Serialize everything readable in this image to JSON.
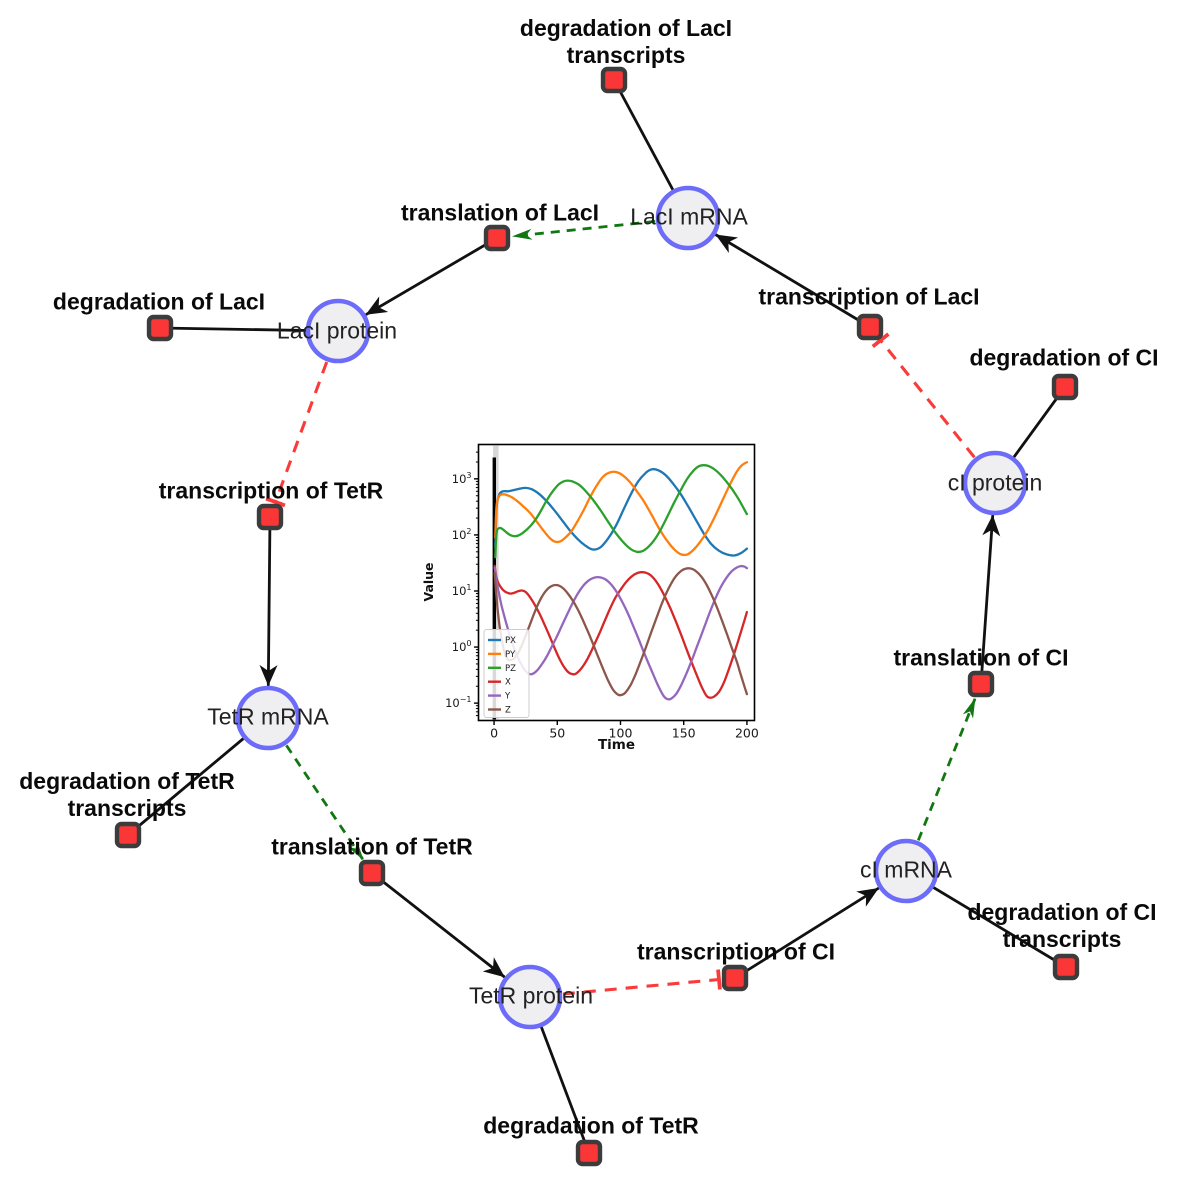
{
  "diagram": {
    "species": [
      {
        "label": "LacI mRNA"
      },
      {
        "label": "LacI protein"
      },
      {
        "label": "TetR mRNA"
      },
      {
        "label": "TetR protein"
      },
      {
        "label": "cI mRNA"
      },
      {
        "label": "cI protein"
      }
    ],
    "reactions": [
      {
        "label": "degradation of LacI transcripts"
      },
      {
        "label": "translation of LacI"
      },
      {
        "label": "transcription of LacI"
      },
      {
        "label": "degradation of LacI"
      },
      {
        "label": "degradation of CI"
      },
      {
        "label": "transcription of TetR"
      },
      {
        "label": "degradation of TetR transcripts"
      },
      {
        "label": "translation of TetR"
      },
      {
        "label": "degradation of TetR"
      },
      {
        "label": "transcription of CI"
      },
      {
        "label": "degradation of CI transcripts"
      },
      {
        "label": "translation of CI"
      }
    ],
    "colors": {
      "species_fill": "#efeff1",
      "species_border": "#6c6cf9",
      "reaction_fill": "#fa3636",
      "reaction_border": "#3c3c3c",
      "edge": "#111111",
      "modifier_green": "#117711",
      "inhibition_red": "#fa3b3b"
    }
  },
  "chart_data": {
    "type": "line",
    "title": "",
    "xlabel": "Time",
    "ylabel": "Value",
    "yscale": "log",
    "xlim": [
      -12.3,
      206
    ],
    "ylim": [
      0.049,
      4100
    ],
    "xticks": [
      0,
      50,
      100,
      150,
      200
    ],
    "ytick_exponents": [
      3,
      2,
      1,
      0,
      -1
    ],
    "legend_position": "lower left",
    "annotations": {
      "vline_x": 0.2,
      "vline_color": "#000000",
      "band_color": "#9a9494"
    },
    "series": [
      {
        "name": "PX",
        "color": "#1f77b4",
        "points": [
          [
            1,
            60
          ],
          [
            2,
            300
          ],
          [
            4,
            520
          ],
          [
            7,
            600
          ],
          [
            11,
            600
          ],
          [
            15,
            625
          ],
          [
            20,
            665
          ],
          [
            25,
            690
          ],
          [
            30,
            650
          ],
          [
            36,
            530
          ],
          [
            42,
            390
          ],
          [
            48,
            270
          ],
          [
            54,
            180
          ],
          [
            60,
            120
          ],
          [
            66,
            85
          ],
          [
            72,
            65
          ],
          [
            78,
            55
          ],
          [
            84,
            60
          ],
          [
            90,
            85
          ],
          [
            96,
            140
          ],
          [
            102,
            270
          ],
          [
            108,
            520
          ],
          [
            114,
            900
          ],
          [
            120,
            1280
          ],
          [
            125,
            1480
          ],
          [
            130,
            1420
          ],
          [
            136,
            1150
          ],
          [
            142,
            800
          ],
          [
            148,
            520
          ],
          [
            154,
            310
          ],
          [
            160,
            180
          ],
          [
            166,
            105
          ],
          [
            172,
            68
          ],
          [
            178,
            52
          ],
          [
            184,
            45
          ],
          [
            190,
            43
          ],
          [
            195,
            47
          ],
          [
            200,
            57
          ]
        ]
      },
      {
        "name": "PY",
        "color": "#ff7f0e",
        "points": [
          [
            1,
            90
          ],
          [
            2,
            330
          ],
          [
            4,
            490
          ],
          [
            7,
            530
          ],
          [
            10,
            515
          ],
          [
            14,
            470
          ],
          [
            19,
            390
          ],
          [
            24,
            310
          ],
          [
            29,
            240
          ],
          [
            34,
            170
          ],
          [
            39,
            120
          ],
          [
            44,
            88
          ],
          [
            48,
            76
          ],
          [
            52,
            76
          ],
          [
            56,
            88
          ],
          [
            61,
            115
          ],
          [
            66,
            175
          ],
          [
            71,
            280
          ],
          [
            76,
            470
          ],
          [
            81,
            750
          ],
          [
            86,
            1080
          ],
          [
            91,
            1290
          ],
          [
            96,
            1330
          ],
          [
            101,
            1190
          ],
          [
            107,
            900
          ],
          [
            113,
            600
          ],
          [
            119,
            380
          ],
          [
            125,
            220
          ],
          [
            131,
            125
          ],
          [
            137,
            78
          ],
          [
            143,
            54
          ],
          [
            148,
            45
          ],
          [
            153,
            45
          ],
          [
            158,
            55
          ],
          [
            163,
            75
          ],
          [
            169,
            120
          ],
          [
            175,
            220
          ],
          [
            181,
            430
          ],
          [
            187,
            830
          ],
          [
            192,
            1350
          ],
          [
            196,
            1750
          ],
          [
            200,
            1980
          ]
        ]
      },
      {
        "name": "PZ",
        "color": "#2ca02c",
        "points": [
          [
            1,
            40
          ],
          [
            2,
            110
          ],
          [
            4,
            132
          ],
          [
            6,
            130
          ],
          [
            9,
            115
          ],
          [
            13,
            99
          ],
          [
            17,
            95
          ],
          [
            21,
            102
          ],
          [
            26,
            125
          ],
          [
            31,
            165
          ],
          [
            36,
            245
          ],
          [
            41,
            390
          ],
          [
            46,
            580
          ],
          [
            51,
            790
          ],
          [
            55,
            900
          ],
          [
            58,
            930
          ],
          [
            62,
            900
          ],
          [
            67,
            790
          ],
          [
            72,
            620
          ],
          [
            78,
            430
          ],
          [
            84,
            280
          ],
          [
            90,
            175
          ],
          [
            96,
            110
          ],
          [
            102,
            75
          ],
          [
            108,
            56
          ],
          [
            113,
            50
          ],
          [
            118,
            52
          ],
          [
            124,
            68
          ],
          [
            130,
            105
          ],
          [
            136,
            190
          ],
          [
            142,
            360
          ],
          [
            148,
            650
          ],
          [
            153,
            1020
          ],
          [
            158,
            1420
          ],
          [
            162,
            1680
          ],
          [
            166,
            1750
          ],
          [
            170,
            1680
          ],
          [
            175,
            1440
          ],
          [
            181,
            1060
          ],
          [
            187,
            720
          ],
          [
            193,
            450
          ],
          [
            200,
            235
          ]
        ]
      },
      {
        "name": "X",
        "color": "#d62728",
        "points": [
          [
            0.5,
            28
          ],
          [
            2,
            17
          ],
          [
            4,
            13
          ],
          [
            7,
            10.5
          ],
          [
            10,
            9.4
          ],
          [
            13,
            9.0
          ],
          [
            16,
            9.3
          ],
          [
            19,
            9.9
          ],
          [
            22,
            10.2
          ],
          [
            25,
            9.6
          ],
          [
            28,
            8.0
          ],
          [
            32,
            5.8
          ],
          [
            36,
            3.9
          ],
          [
            40,
            2.5
          ],
          [
            44,
            1.55
          ],
          [
            48,
            0.95
          ],
          [
            52,
            0.6
          ],
          [
            56,
            0.42
          ],
          [
            60,
            0.34
          ],
          [
            64,
            0.33
          ],
          [
            68,
            0.39
          ],
          [
            72,
            0.52
          ],
          [
            76,
            0.76
          ],
          [
            80,
            1.2
          ],
          [
            84,
            1.9
          ],
          [
            88,
            3.1
          ],
          [
            92,
            5.0
          ],
          [
            96,
            7.6
          ],
          [
            100,
            10.5
          ],
          [
            104,
            14
          ],
          [
            108,
            17.5
          ],
          [
            112,
            20.3
          ],
          [
            116,
            21.6
          ],
          [
            120,
            21.2
          ],
          [
            124,
            19
          ],
          [
            128,
            15
          ],
          [
            132,
            10.8
          ],
          [
            136,
            7.2
          ],
          [
            140,
            4.6
          ],
          [
            144,
            2.8
          ],
          [
            148,
            1.65
          ],
          [
            152,
            0.95
          ],
          [
            156,
            0.55
          ],
          [
            160,
            0.33
          ],
          [
            164,
            0.2
          ],
          [
            168,
            0.135
          ],
          [
            171,
            0.125
          ],
          [
            174,
            0.13
          ],
          [
            178,
            0.16
          ],
          [
            182,
            0.24
          ],
          [
            186,
            0.42
          ],
          [
            190,
            0.78
          ],
          [
            194,
            1.5
          ],
          [
            197,
            2.5
          ],
          [
            200,
            4.2
          ]
        ]
      },
      {
        "name": "Y",
        "color": "#9467bd",
        "points": [
          [
            0.5,
            26
          ],
          [
            2,
            15
          ],
          [
            4,
            8.8
          ],
          [
            6,
            5.4
          ],
          [
            9,
            3.0
          ],
          [
            12,
            1.75
          ],
          [
            15,
            1.08
          ],
          [
            18,
            0.72
          ],
          [
            21,
            0.52
          ],
          [
            24,
            0.4
          ],
          [
            27,
            0.34
          ],
          [
            30,
            0.33
          ],
          [
            34,
            0.38
          ],
          [
            38,
            0.5
          ],
          [
            42,
            0.7
          ],
          [
            46,
            1.05
          ],
          [
            50,
            1.6
          ],
          [
            54,
            2.5
          ],
          [
            58,
            3.9
          ],
          [
            62,
            6.0
          ],
          [
            66,
            8.8
          ],
          [
            70,
            12
          ],
          [
            74,
            14.9
          ],
          [
            78,
            16.9
          ],
          [
            82,
            17.7
          ],
          [
            86,
            17
          ],
          [
            90,
            15
          ],
          [
            94,
            12
          ],
          [
            98,
            8.8
          ],
          [
            102,
            6.0
          ],
          [
            106,
            3.9
          ],
          [
            110,
            2.4
          ],
          [
            114,
            1.45
          ],
          [
            118,
            0.86
          ],
          [
            122,
            0.52
          ],
          [
            126,
            0.32
          ],
          [
            130,
            0.2
          ],
          [
            134,
            0.135
          ],
          [
            137,
            0.118
          ],
          [
            140,
            0.12
          ],
          [
            144,
            0.145
          ],
          [
            148,
            0.21
          ],
          [
            152,
            0.33
          ],
          [
            156,
            0.55
          ],
          [
            160,
            0.95
          ],
          [
            164,
            1.65
          ],
          [
            168,
            2.9
          ],
          [
            172,
            5.0
          ],
          [
            176,
            8.2
          ],
          [
            180,
            12.5
          ],
          [
            184,
            17.5
          ],
          [
            188,
            22.5
          ],
          [
            192,
            26.2
          ],
          [
            195,
            27.8
          ],
          [
            198,
            27.2
          ],
          [
            200,
            25.5
          ]
        ]
      },
      {
        "name": "Z",
        "color": "#8c564b",
        "points": [
          [
            0.5,
            21
          ],
          [
            2,
            7.5
          ],
          [
            3.5,
            3.4
          ],
          [
            5,
            1.9
          ],
          [
            7,
            1.05
          ],
          [
            9,
            0.72
          ],
          [
            11,
            0.6
          ],
          [
            13,
            0.58
          ],
          [
            16,
            0.63
          ],
          [
            19,
            0.78
          ],
          [
            22,
            1.08
          ],
          [
            25,
            1.6
          ],
          [
            28,
            2.4
          ],
          [
            31,
            3.6
          ],
          [
            34,
            5.3
          ],
          [
            37,
            7.3
          ],
          [
            40,
            9.4
          ],
          [
            43,
            11.2
          ],
          [
            46,
            12.4
          ],
          [
            49,
            12.8
          ],
          [
            52,
            12.3
          ],
          [
            55,
            11
          ],
          [
            58,
            9.2
          ],
          [
            62,
            6.9
          ],
          [
            66,
            4.8
          ],
          [
            70,
            3.1
          ],
          [
            74,
            1.95
          ],
          [
            78,
            1.18
          ],
          [
            82,
            0.7
          ],
          [
            86,
            0.42
          ],
          [
            90,
            0.26
          ],
          [
            94,
            0.175
          ],
          [
            98,
            0.142
          ],
          [
            101,
            0.14
          ],
          [
            104,
            0.155
          ],
          [
            108,
            0.21
          ],
          [
            112,
            0.33
          ],
          [
            116,
            0.56
          ],
          [
            120,
            0.98
          ],
          [
            124,
            1.75
          ],
          [
            128,
            3.1
          ],
          [
            132,
            5.4
          ],
          [
            136,
            8.9
          ],
          [
            140,
            13.5
          ],
          [
            144,
            18.6
          ],
          [
            148,
            22.8
          ],
          [
            151,
            24.8
          ],
          [
            154,
            25.4
          ],
          [
            157,
            24.6
          ],
          [
            160,
            22.3
          ],
          [
            164,
            18
          ],
          [
            168,
            13
          ],
          [
            172,
            8.6
          ],
          [
            176,
            5.3
          ],
          [
            180,
            3.1
          ],
          [
            184,
            1.75
          ],
          [
            188,
            0.98
          ],
          [
            192,
            0.55
          ],
          [
            195,
            0.33
          ],
          [
            198,
            0.2
          ],
          [
            200,
            0.145
          ]
        ]
      }
    ]
  }
}
